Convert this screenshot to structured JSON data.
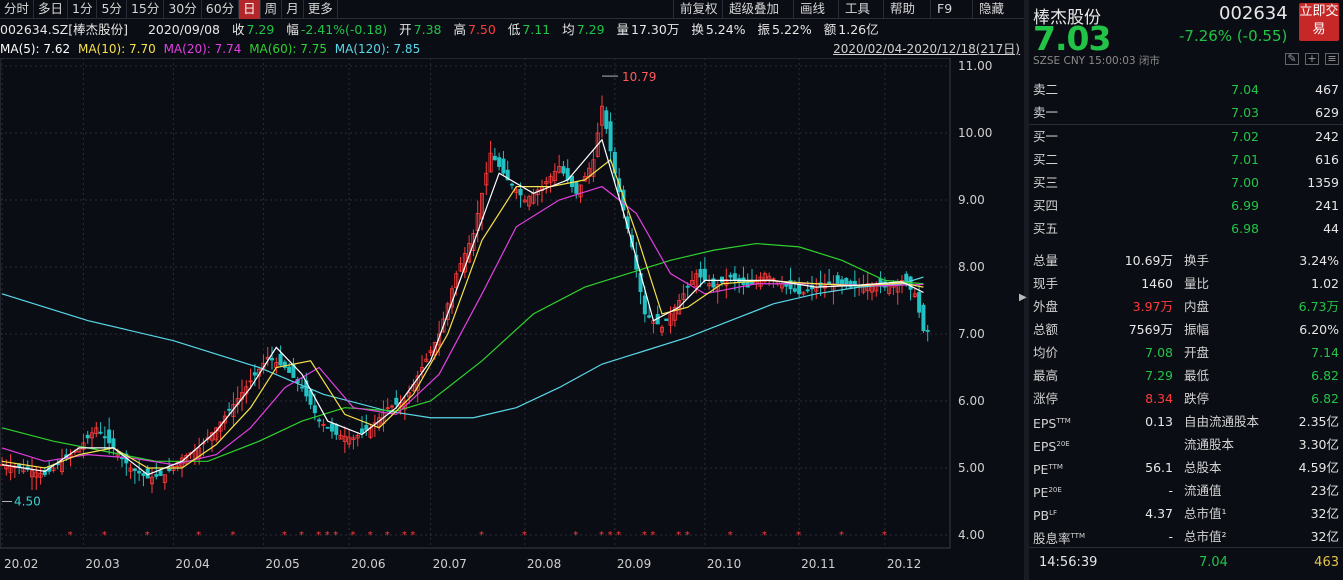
{
  "toolbar": {
    "periods": [
      "分时",
      "多日",
      "1分",
      "5分",
      "15分",
      "30分",
      "60分",
      "日",
      "周",
      "月",
      "更多"
    ],
    "active_period": "日",
    "right": [
      "前复权",
      "超级叠加",
      "画线",
      "工具",
      "帮助",
      "F9",
      "隐藏"
    ]
  },
  "quote_line": {
    "symbol": "002634.SZ[棒杰股份]",
    "date": "2020/09/08",
    "close_label": "收",
    "close": "7.29",
    "chg_label": "幅",
    "chg": "-2.41%(-0.18)",
    "open_label": "开",
    "open": "7.38",
    "high_label": "高",
    "high": "7.50",
    "low_label": "低",
    "low": "7.11",
    "avg_label": "均",
    "avg": "7.29",
    "vol_label": "量",
    "vol": "17.30万",
    "turnover_label": "换",
    "turnover": "5.24%",
    "amp_label": "振",
    "amp": "5.22%",
    "amount_label": "额",
    "amount": "1.26亿"
  },
  "ma_line": {
    "ma5": "MA(5): 7.62",
    "ma10": "MA(10): 7.70",
    "ma20": "MA(20): 7.74",
    "ma60": "MA(60): 7.75",
    "ma120": "MA(120): 7.85",
    "date_range": "2020/02/04-2020/12/18(217日)"
  },
  "colors": {
    "up": "#ff3b3b",
    "down": "#22c1c3",
    "ma5": "#ffffff",
    "ma10": "#f5e14a",
    "ma20": "#e040e0",
    "ma60": "#2ed12e",
    "ma120": "#58d8e8"
  },
  "chart_data": {
    "type": "candlestick",
    "y_ticks": [
      "11.00",
      "10.00",
      "9.00",
      "8.00",
      "7.00",
      "6.00",
      "5.00",
      "4.00"
    ],
    "x_ticks": [
      "20.02",
      "20.03",
      "20.04",
      "20.05",
      "20.06",
      "20.07",
      "20.08",
      "20.09",
      "20.10",
      "20.11",
      "20.12"
    ],
    "ylim": [
      4.0,
      11.0
    ],
    "annotations": [
      {
        "label": "10.79"
      },
      {
        "label": "4.50"
      }
    ],
    "close_path": [
      [
        0,
        5.05
      ],
      [
        5,
        5.0
      ],
      [
        10,
        4.9
      ],
      [
        14,
        5.1
      ],
      [
        18,
        5.3
      ],
      [
        22,
        5.6
      ],
      [
        26,
        5.3
      ],
      [
        30,
        5.0
      ],
      [
        34,
        4.85
      ],
      [
        38,
        4.9
      ],
      [
        42,
        5.15
      ],
      [
        46,
        5.3
      ],
      [
        50,
        5.6
      ],
      [
        54,
        5.95
      ],
      [
        58,
        6.3
      ],
      [
        62,
        6.65
      ],
      [
        66,
        6.5
      ],
      [
        70,
        6.2
      ],
      [
        74,
        5.7
      ],
      [
        78,
        5.5
      ],
      [
        82,
        5.45
      ],
      [
        86,
        5.6
      ],
      [
        90,
        5.9
      ],
      [
        94,
        6.0
      ],
      [
        98,
        6.5
      ],
      [
        102,
        7.0
      ],
      [
        106,
        7.9
      ],
      [
        110,
        8.5
      ],
      [
        114,
        9.7
      ],
      [
        118,
        9.3
      ],
      [
        122,
        9.0
      ],
      [
        126,
        9.2
      ],
      [
        130,
        9.5
      ],
      [
        134,
        9.1
      ],
      [
        138,
        9.6
      ],
      [
        140,
        10.4
      ],
      [
        143,
        9.4
      ],
      [
        147,
        8.3
      ],
      [
        150,
        7.3
      ],
      [
        154,
        7.1
      ],
      [
        158,
        7.5
      ],
      [
        162,
        7.9
      ],
      [
        166,
        7.7
      ],
      [
        170,
        7.85
      ],
      [
        174,
        7.7
      ],
      [
        178,
        7.9
      ],
      [
        182,
        7.75
      ],
      [
        186,
        7.6
      ],
      [
        190,
        7.7
      ],
      [
        194,
        7.75
      ],
      [
        198,
        7.7
      ],
      [
        202,
        7.75
      ],
      [
        206,
        7.7
      ],
      [
        210,
        7.8
      ],
      [
        213,
        7.6
      ],
      [
        215,
        7.05
      ]
    ],
    "ma5": [
      [
        0,
        5.05
      ],
      [
        10,
        4.95
      ],
      [
        18,
        5.3
      ],
      [
        26,
        5.3
      ],
      [
        34,
        4.9
      ],
      [
        42,
        5.1
      ],
      [
        50,
        5.55
      ],
      [
        58,
        6.2
      ],
      [
        64,
        6.8
      ],
      [
        70,
        6.4
      ],
      [
        76,
        5.7
      ],
      [
        84,
        5.5
      ],
      [
        92,
        5.9
      ],
      [
        100,
        6.6
      ],
      [
        108,
        8.0
      ],
      [
        116,
        9.4
      ],
      [
        124,
        9.1
      ],
      [
        132,
        9.3
      ],
      [
        140,
        9.9
      ],
      [
        146,
        8.6
      ],
      [
        152,
        7.2
      ],
      [
        158,
        7.4
      ],
      [
        164,
        7.8
      ],
      [
        172,
        7.8
      ],
      [
        180,
        7.8
      ],
      [
        190,
        7.7
      ],
      [
        200,
        7.73
      ],
      [
        210,
        7.78
      ],
      [
        215,
        7.62
      ]
    ],
    "ma10": [
      [
        0,
        5.1
      ],
      [
        10,
        5.0
      ],
      [
        18,
        5.2
      ],
      [
        26,
        5.3
      ],
      [
        34,
        5.0
      ],
      [
        42,
        5.0
      ],
      [
        50,
        5.35
      ],
      [
        58,
        5.9
      ],
      [
        64,
        6.5
      ],
      [
        72,
        6.6
      ],
      [
        80,
        5.8
      ],
      [
        88,
        5.6
      ],
      [
        96,
        6.1
      ],
      [
        104,
        7.0
      ],
      [
        112,
        8.4
      ],
      [
        120,
        9.2
      ],
      [
        128,
        9.2
      ],
      [
        136,
        9.3
      ],
      [
        142,
        9.6
      ],
      [
        148,
        8.5
      ],
      [
        154,
        7.3
      ],
      [
        160,
        7.4
      ],
      [
        168,
        7.75
      ],
      [
        178,
        7.8
      ],
      [
        190,
        7.75
      ],
      [
        200,
        7.72
      ],
      [
        210,
        7.76
      ],
      [
        215,
        7.7
      ]
    ],
    "ma20": [
      [
        0,
        5.3
      ],
      [
        10,
        5.1
      ],
      [
        20,
        5.2
      ],
      [
        30,
        5.15
      ],
      [
        40,
        5.05
      ],
      [
        50,
        5.2
      ],
      [
        58,
        5.6
      ],
      [
        66,
        6.2
      ],
      [
        74,
        6.5
      ],
      [
        82,
        5.9
      ],
      [
        92,
        5.8
      ],
      [
        102,
        6.4
      ],
      [
        112,
        7.6
      ],
      [
        120,
        8.6
      ],
      [
        130,
        9.0
      ],
      [
        140,
        9.2
      ],
      [
        148,
        8.8
      ],
      [
        156,
        7.9
      ],
      [
        164,
        7.6
      ],
      [
        176,
        7.75
      ],
      [
        190,
        7.75
      ],
      [
        205,
        7.72
      ],
      [
        215,
        7.74
      ]
    ],
    "ma60": [
      [
        0,
        5.6
      ],
      [
        12,
        5.4
      ],
      [
        24,
        5.25
      ],
      [
        36,
        5.1
      ],
      [
        48,
        5.1
      ],
      [
        60,
        5.4
      ],
      [
        70,
        5.7
      ],
      [
        80,
        5.9
      ],
      [
        92,
        5.85
      ],
      [
        100,
        6.0
      ],
      [
        112,
        6.6
      ],
      [
        124,
        7.3
      ],
      [
        136,
        7.7
      ],
      [
        146,
        7.9
      ],
      [
        156,
        8.1
      ],
      [
        166,
        8.25
      ],
      [
        176,
        8.35
      ],
      [
        186,
        8.3
      ],
      [
        196,
        8.1
      ],
      [
        206,
        7.8
      ],
      [
        215,
        7.75
      ]
    ],
    "ma120": [
      [
        0,
        7.6
      ],
      [
        20,
        7.2
      ],
      [
        40,
        6.9
      ],
      [
        60,
        6.5
      ],
      [
        75,
        6.1
      ],
      [
        90,
        5.85
      ],
      [
        100,
        5.75
      ],
      [
        110,
        5.75
      ],
      [
        120,
        5.9
      ],
      [
        130,
        6.2
      ],
      [
        140,
        6.55
      ],
      [
        150,
        6.75
      ],
      [
        160,
        6.95
      ],
      [
        170,
        7.2
      ],
      [
        180,
        7.45
      ],
      [
        190,
        7.6
      ],
      [
        200,
        7.7
      ],
      [
        210,
        7.75
      ],
      [
        215,
        7.85
      ]
    ],
    "star_markers": [
      16,
      24,
      34,
      46,
      54,
      66,
      70,
      74,
      76,
      78,
      82,
      86,
      90,
      94,
      96,
      112,
      122,
      134,
      140,
      142,
      144,
      150,
      152,
      158,
      160,
      170,
      178,
      186,
      196,
      206
    ]
  },
  "panel": {
    "name": "棒杰股份",
    "code": "002634",
    "trade_btn": "立即交易",
    "price": "7.03",
    "change": "-7.26% (-0.55)",
    "meta": "SZSE   CNY   15:00:03   闭市",
    "asks": [
      {
        "label": "卖二",
        "price": "7.04",
        "vol": "467"
      },
      {
        "label": "卖一",
        "price": "7.03",
        "vol": "629"
      }
    ],
    "bids": [
      {
        "label": "买一",
        "price": "7.02",
        "vol": "242"
      },
      {
        "label": "买二",
        "price": "7.01",
        "vol": "616"
      },
      {
        "label": "买三",
        "price": "7.00",
        "vol": "1359"
      },
      {
        "label": "买四",
        "price": "6.99",
        "vol": "241"
      },
      {
        "label": "买五",
        "price": "6.98",
        "vol": "44"
      }
    ],
    "stats": [
      {
        "a": "总量",
        "b": "10.69万",
        "bc": "white",
        "c": "换手",
        "d": "3.24%",
        "dc": "white"
      },
      {
        "a": "现手",
        "b": "1460",
        "bc": "white",
        "c": "量比",
        "d": "1.02",
        "dc": "white"
      },
      {
        "a": "外盘",
        "b": "3.97万",
        "bc": "red",
        "c": "内盘",
        "d": "6.73万",
        "dc": "green"
      },
      {
        "a": "总额",
        "b": "7569万",
        "bc": "white",
        "c": "振幅",
        "d": "6.20%",
        "dc": "white"
      },
      {
        "a": "均价",
        "b": "7.08",
        "bc": "green",
        "c": "开盘",
        "d": "7.14",
        "dc": "green"
      },
      {
        "a": "最高",
        "b": "7.29",
        "bc": "green",
        "c": "最低",
        "d": "6.82",
        "dc": "green"
      },
      {
        "a": "涨停",
        "b": "8.34",
        "bc": "red",
        "c": "跌停",
        "d": "6.82",
        "dc": "green"
      }
    ],
    "fund": [
      {
        "a": "EPS",
        "sup": "TTM",
        "b": "0.13",
        "c": "自由流通股本",
        "d": "2.35亿"
      },
      {
        "a": "EPS",
        "sup": "20E",
        "b": "",
        "c": "流通股本",
        "d": "3.30亿"
      },
      {
        "a": "PE",
        "sup": "TTM",
        "b": "56.1",
        "c": "总股本",
        "d": "4.59亿"
      },
      {
        "a": "PE",
        "sup": "20E",
        "b": "-",
        "c": "流通值",
        "d": "23亿"
      },
      {
        "a": "PB",
        "sup": "LF",
        "b": "4.37",
        "c": "总市值¹",
        "d": "32亿"
      },
      {
        "a": "股息率",
        "sup": "TTM",
        "b": "-",
        "c": "总市值²",
        "d": "32亿"
      }
    ],
    "last_tick": {
      "time": "14:56:39",
      "price": "7.04",
      "vol": "463"
    }
  }
}
